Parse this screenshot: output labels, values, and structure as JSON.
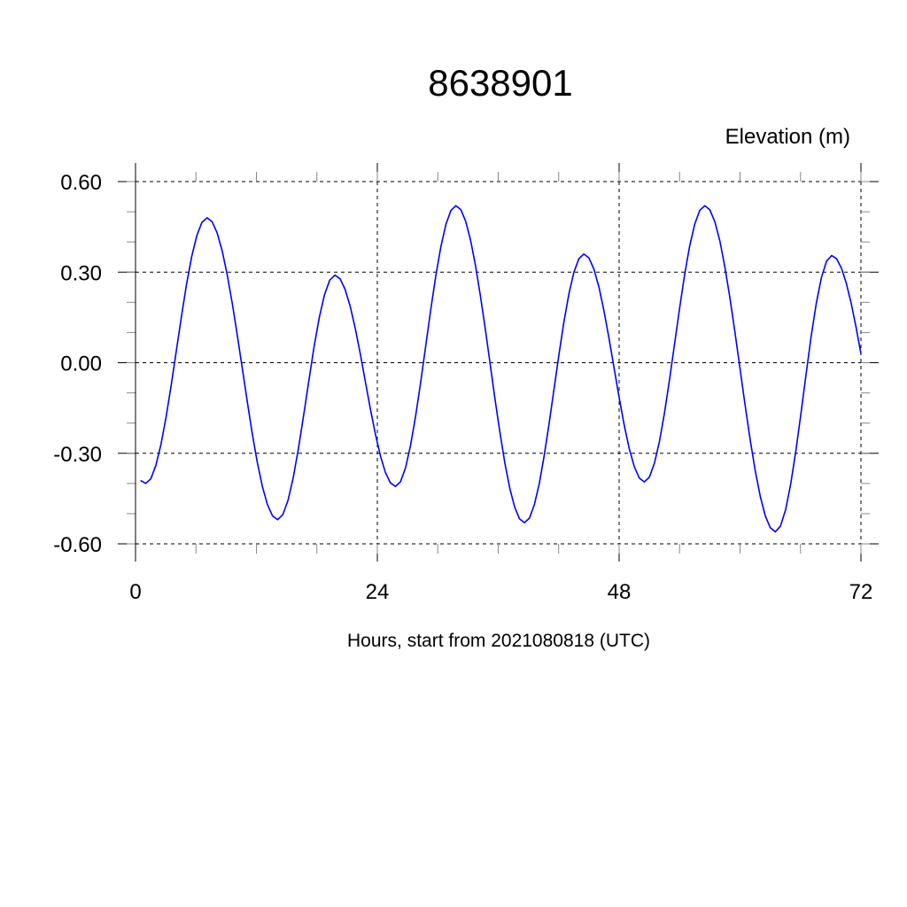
{
  "chart_data": {
    "type": "line",
    "title": "8638901",
    "ylabel": "Elevation (m)",
    "xlabel": "Hours, start from 2021080818 (UTC)",
    "xlim": [
      0,
      72
    ],
    "ylim": [
      -0.6,
      0.6
    ],
    "xticks": [
      0,
      24,
      48,
      72
    ],
    "xtick_labels": [
      "0",
      "24",
      "48",
      "72"
    ],
    "yticks": [
      0.6,
      0.3,
      0.0,
      -0.3,
      -0.6
    ],
    "ytick_labels": [
      "0.60",
      "0.30",
      "0.00",
      "-0.30",
      "-0.60"
    ],
    "grid": true,
    "series": [
      {
        "color": "#0000ff",
        "x": [
          0.5,
          1.0,
          7.1,
          14.1,
          19.8,
          25.8,
          31.8,
          38.6,
          44.5,
          50.5,
          56.5,
          63.5,
          69.1,
          72.0
        ],
        "y": [
          -0.39,
          -0.4,
          0.48,
          -0.52,
          0.29,
          -0.41,
          0.52,
          -0.53,
          0.36,
          -0.395,
          0.52,
          -0.56,
          0.355,
          0.03
        ]
      }
    ]
  }
}
